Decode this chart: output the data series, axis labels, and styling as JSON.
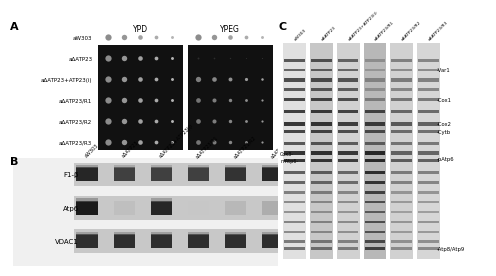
{
  "panel_A": {
    "label": "A",
    "row_labels": [
      "aW303",
      "aΔATP23",
      "aΔATP23+ATP23(i)",
      "aΔATP23/R1",
      "aΔATP23/R2",
      "aΔATP23/R3"
    ],
    "plate_labels": [
      "YPD",
      "YPEG"
    ],
    "n_cols": 5,
    "n_rows": 6
  },
  "panel_B": {
    "label": "B",
    "row_labels": [
      "F1-β",
      "Atp6",
      "VDAC1"
    ],
    "col_labels": [
      "aW303",
      "aΔATP23",
      "aΔATP23+ATP23(i)",
      "aΔATP23/R1",
      "aΔATP23/R2",
      "aΔATP23/R3"
    ]
  },
  "panel_C": {
    "label": "C",
    "col_labels": [
      "aW303",
      "aΔATP23",
      "aΔATP23+ATP23(i)",
      "aΔATP23/R1",
      "aΔATP23/R2",
      "aΔATP23/R3"
    ],
    "right_labels": [
      "Var1",
      "Cox1",
      "Cox2",
      "Cytb",
      "pAtp6",
      "Atp8/Atp9"
    ],
    "left_labels": [
      "Cox3-",
      "mAtp6-"
    ]
  },
  "figure_bg": "#ffffff",
  "panel_label_fontsize": 8
}
